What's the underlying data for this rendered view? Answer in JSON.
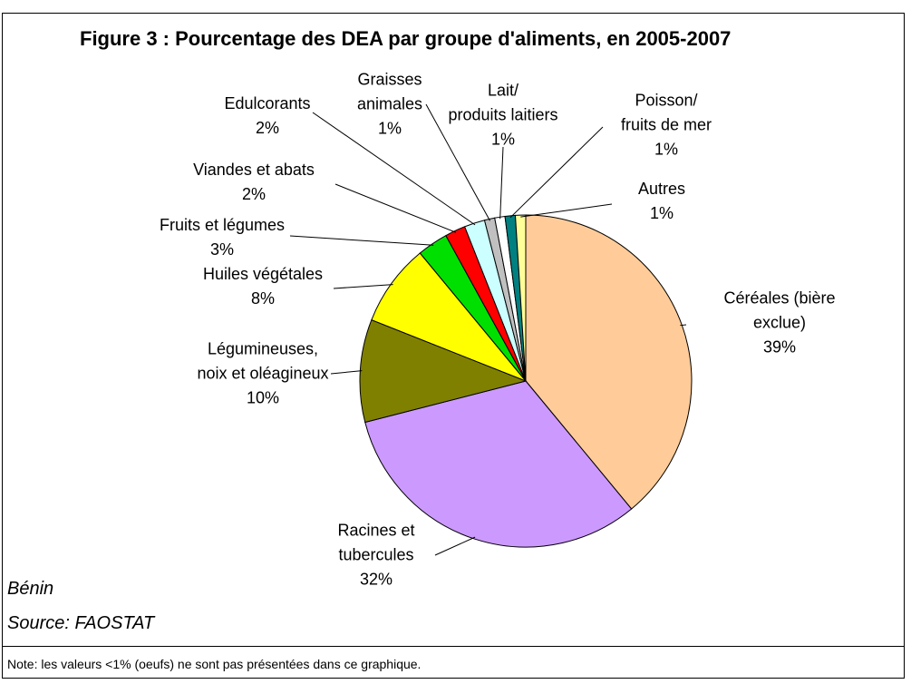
{
  "chart_data": {
    "type": "pie",
    "title": "Figure 3 : Pourcentage des DEA par groupe d'aliments, en 2005-2007",
    "categories": [
      "Céréales (bière\nexclue)",
      "Racines et\ntubercules",
      "Légumineuses,\nnoix et oléagineux",
      "Huiles végétales",
      "Fruits et légumes",
      "Viandes et abats",
      "Edulcorants",
      "Graisses\nanimales",
      "Lait/\nproduits laitiers",
      "Poisson/\nfruits de mer",
      "Autres"
    ],
    "values": [
      39,
      32,
      10,
      8,
      3,
      2,
      2,
      1,
      1,
      1,
      1
    ],
    "value_labels": [
      "39%",
      "32%",
      "10%",
      "8%",
      "3%",
      "2%",
      "2%",
      "1%",
      "1%",
      "1%",
      "1%"
    ],
    "colors": [
      "#FFCC99",
      "#CC99FF",
      "#808000",
      "#FFFF00",
      "#00E000",
      "#FF0000",
      "#CCFFFF",
      "#C0C0C0",
      "#FFFFFF",
      "#008080",
      "#FFFF99"
    ],
    "country": "Bénin",
    "source": "Source: FAOSTAT",
    "note": "Note: les valeurs <1% (oeufs) ne sont pas présentées dans ce graphique."
  }
}
